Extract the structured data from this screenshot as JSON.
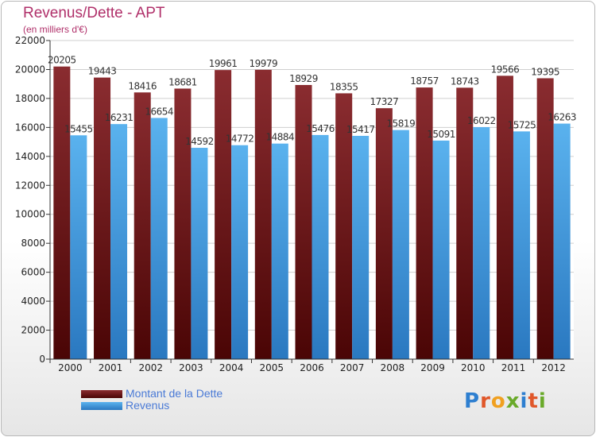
{
  "title": "Revenus/Dette - APT",
  "subtitle": "(en milliers d'€)",
  "legend": {
    "debt_label": "Montant de la Dette",
    "revenue_label": "Revenus"
  },
  "logo": {
    "text": "Proxiti",
    "letter_colors": [
      "#2e7fd0",
      "#e0572a",
      "#f0a020",
      "#6aaa2a",
      "#2e7fd0",
      "#e0572a",
      "#6aaa2a"
    ]
  },
  "colors": {
    "debt": "#7a1f22",
    "revenue": "#4aa5e6",
    "title": "#b0306a",
    "legend_text": "#4a7ad6"
  },
  "chart_data": {
    "type": "bar",
    "categories": [
      "2000",
      "2001",
      "2002",
      "2003",
      "2004",
      "2005",
      "2006",
      "2007",
      "2008",
      "2009",
      "2010",
      "2011",
      "2012"
    ],
    "series": [
      {
        "name": "Montant de la Dette",
        "values": [
          20205,
          19443,
          18416,
          18681,
          19961,
          19979,
          18929,
          18355,
          17327,
          18757,
          18743,
          19566,
          19395
        ]
      },
      {
        "name": "Revenus",
        "values": [
          15455,
          16231,
          16654,
          14592,
          14772,
          14884,
          15476,
          15417,
          15819,
          15091,
          16022,
          15725,
          16263
        ]
      }
    ],
    "ylim": [
      0,
      22000
    ],
    "yticks": [
      0,
      2000,
      4000,
      6000,
      8000,
      10000,
      12000,
      14000,
      16000,
      18000,
      20000,
      22000
    ],
    "grid": true
  }
}
